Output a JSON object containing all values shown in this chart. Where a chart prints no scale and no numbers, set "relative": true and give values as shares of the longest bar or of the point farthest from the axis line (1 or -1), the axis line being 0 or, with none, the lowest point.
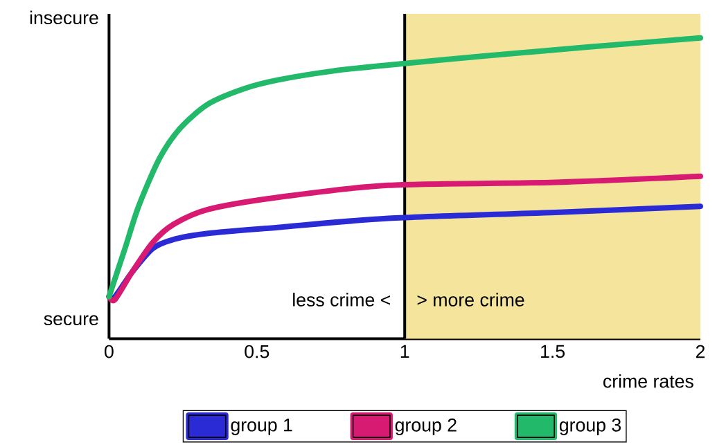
{
  "chart_data": {
    "type": "line",
    "relative": true,
    "xlabel": "crime rates",
    "xlim": [
      0,
      2
    ],
    "xticks": [
      0,
      0.5,
      1,
      1.5,
      2
    ],
    "annotations": [
      "insecure",
      "secure",
      "less crime <",
      "> more crime"
    ],
    "bands": [
      {
        "axis": "x",
        "from": 1,
        "to": 2,
        "color": "#f5e49c"
      }
    ],
    "ref_lines": [
      {
        "axis": "x",
        "value": 1,
        "color": "#000000"
      }
    ],
    "legend": "bottom",
    "series": [
      {
        "name": "group 1",
        "color": "#2b2bd6",
        "x": [
          0,
          0.02,
          0.077,
          0.148,
          0.218,
          0.335,
          0.57,
          0.945,
          1.51,
          2
        ],
        "values": [
          0.14,
          0.14,
          0.22,
          0.3,
          0.33,
          0.35,
          0.37,
          0.4,
          0.42,
          0.44
        ]
      },
      {
        "name": "group 2",
        "color": "#d81b72",
        "x": [
          0,
          0.02,
          0.077,
          0.148,
          0.218,
          0.335,
          0.57,
          0.945,
          1.51,
          2
        ],
        "values": [
          0.14,
          0.13,
          0.22,
          0.32,
          0.38,
          0.43,
          0.47,
          0.51,
          0.52,
          0.54
        ]
      },
      {
        "name": "group 3",
        "color": "#22b96a",
        "x": [
          0,
          0.054,
          0.1,
          0.171,
          0.241,
          0.335,
          0.453,
          0.57,
          0.757,
          0.945,
          1.273,
          1.625,
          2
        ],
        "values": [
          0.14,
          0.3,
          0.44,
          0.6,
          0.7,
          0.78,
          0.83,
          0.86,
          0.89,
          0.91,
          0.94,
          0.97,
          1
        ]
      }
    ]
  }
}
